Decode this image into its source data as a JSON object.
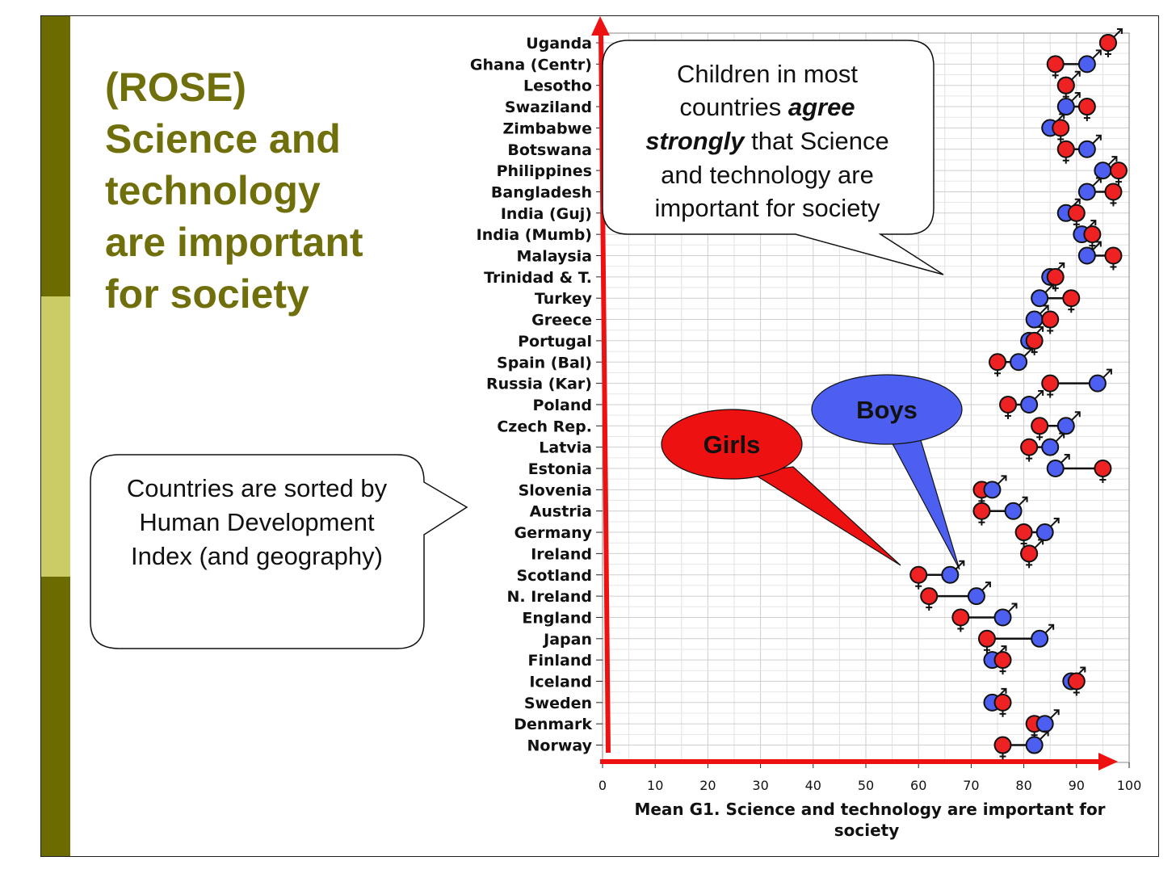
{
  "slide": {
    "title_lines": [
      "(ROSE)",
      "Science and",
      "technology",
      "are important",
      "for society"
    ],
    "colors": {
      "title": "#6f6f0c",
      "bar_dark": "#6b6b00",
      "bar_light": "#cccc66",
      "girls": "#ee2222",
      "boys": "#4d5ff0",
      "arrow": "#ee1111"
    }
  },
  "callouts": {
    "agree_lines": [
      "Children in most",
      "countries ",
      "agree",
      "strongly",
      " that Science",
      "and technology are",
      "important for society"
    ],
    "sorted_lines": [
      "Countries are sorted by",
      "Human Development",
      "Index (and geography)"
    ],
    "girls_label": "Girls",
    "boys_label": "Boys"
  },
  "chart_data": {
    "type": "scatter",
    "xlabel": "Mean G1. Science and technology are important for society",
    "xlabel_lines": [
      "Mean G1. Science and technology are important for",
      "society"
    ],
    "xlim": [
      0,
      100
    ],
    "xticks": [
      "0",
      "10",
      "20",
      "30",
      "40",
      "50",
      "60",
      "70",
      "80",
      "90",
      "100"
    ],
    "grid": true,
    "categories": [
      "Uganda",
      "Ghana (Centr)",
      "Lesotho",
      "Swaziland",
      "Zimbabwe",
      "Botswana",
      "Philippines",
      "Bangladesh",
      "India (Guj)",
      "India (Mumb)",
      "Malaysia",
      "Trinidad & T.",
      "Turkey",
      "Greece",
      "Portugal",
      "Spain (Bal)",
      "Russia (Kar)",
      "Poland",
      "Czech Rep.",
      "Latvia",
      "Estonia",
      "Slovenia",
      "Austria",
      "Germany",
      "Ireland",
      "Scotland",
      "N. Ireland",
      "England",
      "Japan",
      "Finland",
      "Iceland",
      "Sweden",
      "Denmark",
      "Norway"
    ],
    "series": [
      {
        "name": "Girls",
        "symbol": "female",
        "values": [
          96,
          86,
          88,
          92,
          87,
          88,
          98,
          97,
          90,
          93,
          97,
          86,
          89,
          85,
          82,
          75,
          85,
          77,
          83,
          81,
          95,
          72,
          72,
          80,
          81,
          60,
          62,
          68,
          73,
          76,
          90,
          76,
          82,
          76
        ]
      },
      {
        "name": "Boys",
        "symbol": "male",
        "values": [
          96,
          92,
          88,
          88,
          85,
          92,
          95,
          92,
          88,
          91,
          92,
          85,
          83,
          82,
          81,
          79,
          94,
          81,
          88,
          85,
          86,
          74,
          78,
          84,
          81,
          66,
          71,
          76,
          83,
          74,
          89,
          74,
          84,
          82
        ]
      }
    ]
  }
}
